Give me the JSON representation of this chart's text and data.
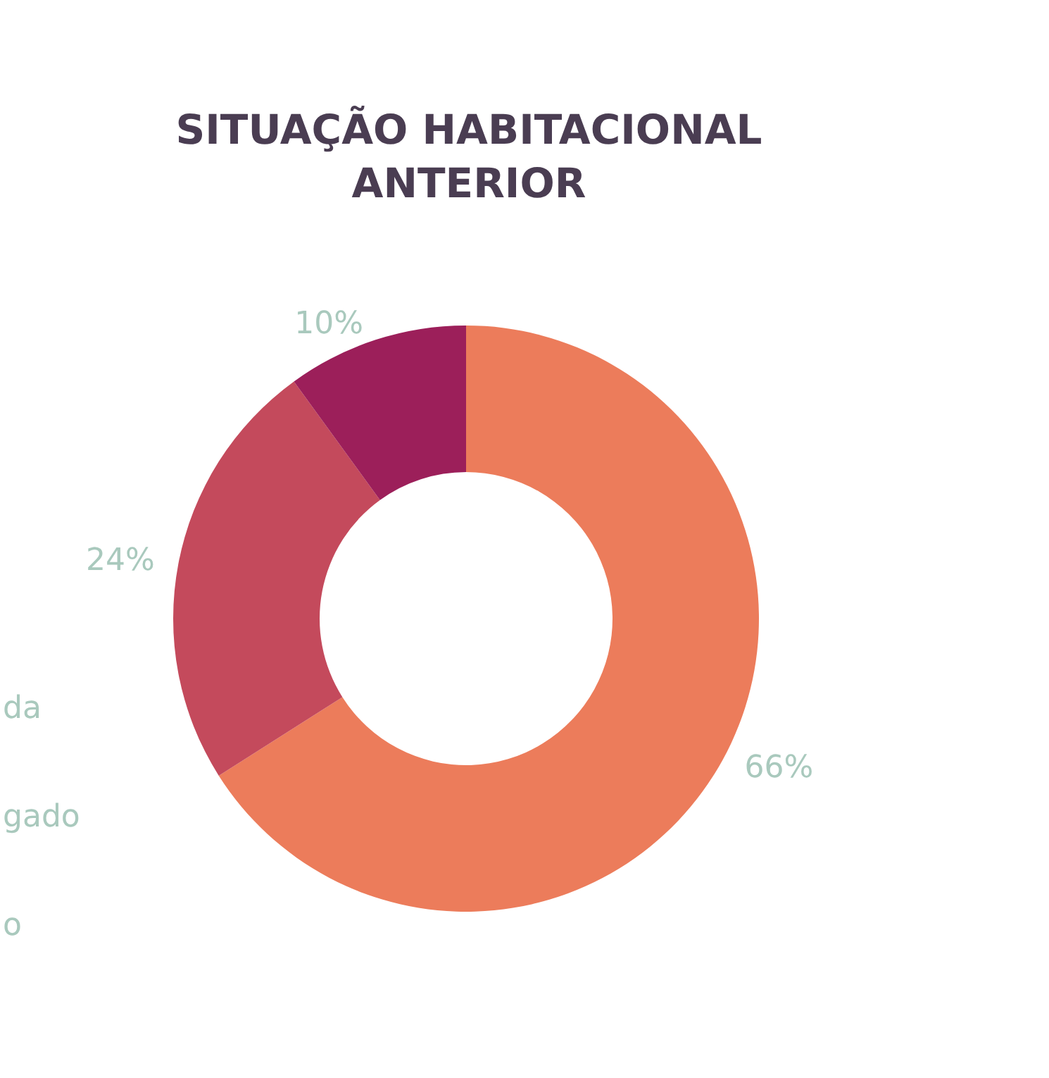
{
  "chart_data": {
    "type": "donut",
    "title": "SITUAÇÃO HABITACIONAL\nANTERIOR",
    "categories": [
      null,
      null,
      null
    ],
    "values": [
      66,
      24,
      10
    ],
    "colors": [
      "#ec7c5b",
      "#c44a5c",
      "#9c1f5a"
    ],
    "value_labels": [
      "66%",
      "24%",
      "10%"
    ],
    "annotations": [
      "da",
      "gado",
      "o"
    ]
  }
}
